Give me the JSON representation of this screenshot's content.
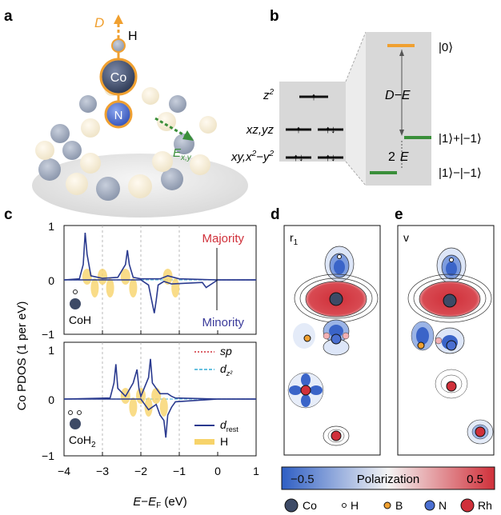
{
  "panels": {
    "a": {
      "label": "a",
      "d_arrow": "D",
      "h_label": "H",
      "co_label": "Co",
      "n_label": "N",
      "field_label": "E",
      "field_sub": "x,y"
    },
    "b": {
      "label": "b",
      "z2": "z",
      "z2_sup": "2",
      "xzyz": "xz,yz",
      "xy": "xy,x",
      "xy_sup": "2",
      "xy_tail": "−y",
      "xy_tail_sup": "2",
      "gap_label": "D−E",
      "split_label": "2",
      "split_E": "E",
      "state0": "|0⟩",
      "state_plus": "|1⟩+|−1⟩",
      "state_minus": "|1⟩−|−1⟩"
    },
    "c": {
      "label": "c",
      "majority": "Majority",
      "minority": "Minority",
      "coh": "CoH",
      "coh2": "CoH",
      "coh2_sub": "2",
      "legend": {
        "sp": "sp",
        "dz2": "d",
        "dz2_sub": "z²",
        "drest": "d",
        "drest_sub": "rest",
        "H": "H"
      },
      "ylabel": "Co PDOS (1 per eV)",
      "xlabel_E": "E",
      "xlabel_minus": "−",
      "xlabel_EF": "E",
      "xlabel_F": "F",
      "xlabel_unit": " (eV)"
    },
    "d": {
      "label": "d",
      "sub": "r",
      "sub_sub": "1"
    },
    "e": {
      "label": "e",
      "sub": "v"
    },
    "colorbar": {
      "min": "−0.5",
      "title": "Polarization",
      "max": "0.5"
    },
    "atom_legend": [
      "Co",
      "H",
      "B",
      "N",
      "Rh"
    ]
  },
  "colors": {
    "co": "#3d4a66",
    "n": "#4a6fd1",
    "b": "#f0a030",
    "rh": "#d0303a",
    "orange": "#f0a030",
    "green": "#3a8f3a",
    "line": "#2a3a8f",
    "hfill": "#f7d36a",
    "majority": "#d0303a",
    "minority": "#3a3a9a"
  },
  "chart_data": [
    {
      "type": "line",
      "title": "CoH",
      "x_ticks": [
        "-4",
        "-3",
        "-2",
        "-1",
        "0",
        "1"
      ],
      "y_ticks": [
        "1",
        "0",
        "-1"
      ],
      "xlim": [
        -4,
        1
      ],
      "ylim": [
        -1,
        1
      ],
      "series": [
        {
          "name": "d_rest majority",
          "x": [
            -4,
            -3.6,
            -3.5,
            -3.45,
            -3.4,
            -3.3,
            -3.0,
            -2.6,
            -2.4,
            -2.35,
            -2.3,
            -2.2,
            -2.0,
            -1.5,
            -1.3,
            -1.0,
            0,
            1
          ],
          "values": [
            0,
            0.02,
            0.3,
            0.92,
            0.5,
            0.08,
            0.03,
            0.05,
            0.3,
            0.58,
            0.3,
            0.05,
            0.02,
            0.02,
            0.08,
            0.02,
            0,
            0
          ]
        },
        {
          "name": "d_rest minority",
          "x": [
            -4,
            -2.0,
            -1.8,
            -1.65,
            -1.6,
            -1.55,
            -1.4,
            -1.2,
            -0.4,
            -0.3,
            0,
            1
          ],
          "values": [
            0,
            0,
            -0.1,
            -0.65,
            -0.4,
            -0.1,
            -0.03,
            -0.08,
            -0.05,
            -0.15,
            0,
            0
          ]
        }
      ]
    },
    {
      "type": "line",
      "title": "CoH2",
      "x_ticks": [
        "-4",
        "-3",
        "-2",
        "-1",
        "0",
        "1"
      ],
      "y_ticks": [
        "1",
        "0",
        "-1"
      ],
      "xlim": [
        -4,
        1
      ],
      "ylim": [
        -1,
        1
      ],
      "series": [
        {
          "name": "d_rest majority",
          "x": [
            -4,
            -2.8,
            -2.7,
            -2.65,
            -2.6,
            -2.4,
            -2.2,
            -2.1,
            -2.05,
            -2.0,
            -1.8,
            -1.75,
            -1.7,
            -1.5,
            -1.3,
            -1.2,
            -1.1,
            0,
            1
          ],
          "values": [
            0,
            0.02,
            0.3,
            0.65,
            0.2,
            0.05,
            0.3,
            0.55,
            0.2,
            0.05,
            0.4,
            0.75,
            0.3,
            0.1,
            0.1,
            0.05,
            0.02,
            0,
            0
          ]
        },
        {
          "name": "d_rest minority",
          "x": [
            -4,
            -2.0,
            -1.9,
            -1.8,
            -1.6,
            -1.5,
            -1.4,
            -1.35,
            -1.3,
            -1.2,
            -1.1,
            0,
            1
          ],
          "values": [
            0,
            0,
            -0.1,
            -0.2,
            -0.1,
            -0.3,
            -0.4,
            -0.72,
            -0.3,
            -0.15,
            -0.05,
            0,
            0
          ]
        }
      ]
    }
  ]
}
